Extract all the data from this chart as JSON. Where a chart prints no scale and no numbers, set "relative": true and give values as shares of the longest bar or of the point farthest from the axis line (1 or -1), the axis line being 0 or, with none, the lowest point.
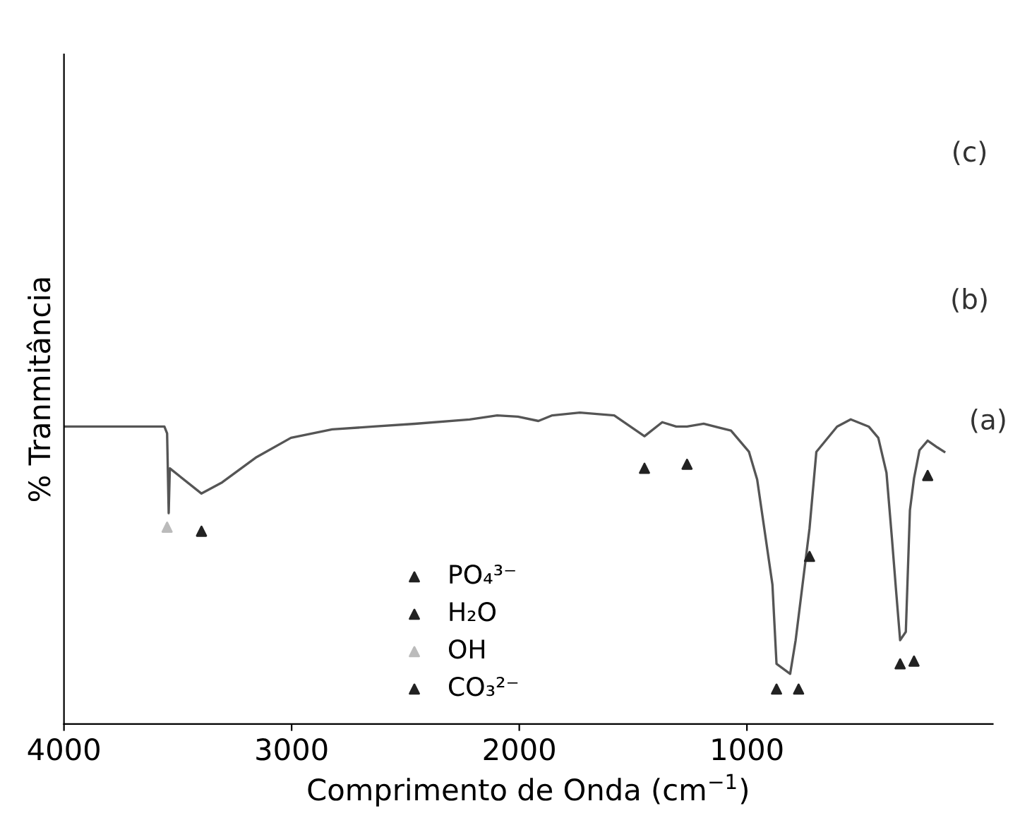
{
  "chart_data": {
    "type": "line",
    "relative": true,
    "xlabel": "Comprimento de Onda (cm$^{−1}$)",
    "ylabel": "% Tranmitância",
    "xlim": [
      4000,
      -80
    ],
    "xticks": [
      4000,
      3000,
      2000,
      1000
    ],
    "legend": "bottom",
    "annotations": [
      "(a)",
      "(b)",
      "(c)"
    ],
    "series": [
      {
        "color": "#555555",
        "x": [
          4000,
          3559,
          3547,
          3540,
          3535,
          3396,
          3305,
          3154,
          3003,
          2822,
          2641,
          2459,
          2218,
          2097,
          2006,
          1916,
          1855,
          1734,
          1583,
          1450,
          1372,
          1311,
          1263,
          1190,
          1070,
          991,
          955,
          888,
          870,
          810,
          786,
          725,
          695,
          604,
          544,
          465,
          423,
          387,
          363,
          345,
          327,
          302,
          284,
          266,
          242,
          206,
          163,
          133
        ],
        "values": [
          0.955,
          0.955,
          0.933,
          0.677,
          0.821,
          0.74,
          0.776,
          0.857,
          0.919,
          0.946,
          0.955,
          0.964,
          0.978,
          0.991,
          0.987,
          0.973,
          0.991,
          1.0,
          0.991,
          0.924,
          0.969,
          0.955,
          0.955,
          0.964,
          0.942,
          0.874,
          0.785,
          0.448,
          0.193,
          0.161,
          0.269,
          0.628,
          0.874,
          0.955,
          0.978,
          0.955,
          0.919,
          0.807,
          0.596,
          0.43,
          0.269,
          0.296,
          0.686,
          0.789,
          0.879,
          0.91,
          0.888,
          0.874
        ]
      },
      {
        "type": "scatter",
        "name": "PO₄³⁻",
        "color": "#222222",
        "marker": "triangle",
        "x": [
          725,
          870,
          773,
          327,
          266,
          206
        ],
        "values": [
          0.538,
          0.112,
          0.112,
          0.193,
          0.202,
          0.798
        ]
      },
      {
        "type": "scatter",
        "name": "H₂O",
        "color": "#222222",
        "marker": "triangle",
        "x": [
          3396,
          1450
        ],
        "values": [
          0.619,
          0.821
        ]
      },
      {
        "type": "scatter",
        "name": "OH",
        "color": "#bbbbbb",
        "marker": "triangle",
        "x": [
          3547
        ],
        "values": [
          0.632
        ]
      },
      {
        "type": "scatter",
        "name": "CO₃²⁻",
        "color": "#222222",
        "marker": "triangle",
        "x": [
          1263
        ],
        "values": [
          0.834
        ]
      }
    ]
  }
}
